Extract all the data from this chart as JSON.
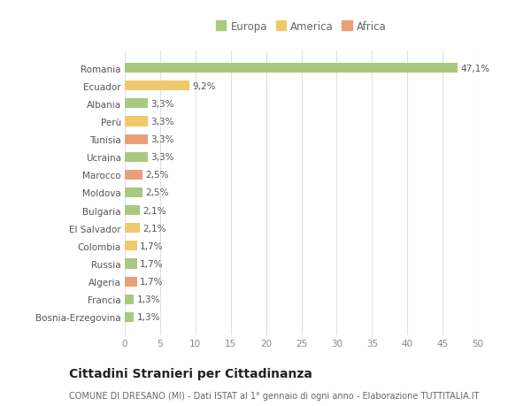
{
  "categories": [
    "Bosnia-Erzegovina",
    "Francia",
    "Algeria",
    "Russia",
    "Colombia",
    "El Salvador",
    "Bulgaria",
    "Moldova",
    "Marocco",
    "Ucraina",
    "Tunisia",
    "Perù",
    "Albania",
    "Ecuador",
    "Romania"
  ],
  "values": [
    1.3,
    1.3,
    1.7,
    1.7,
    1.7,
    2.1,
    2.1,
    2.5,
    2.5,
    3.3,
    3.3,
    3.3,
    3.3,
    9.2,
    47.1
  ],
  "labels": [
    "1,3%",
    "1,3%",
    "1,7%",
    "1,7%",
    "1,7%",
    "2,1%",
    "2,1%",
    "2,5%",
    "2,5%",
    "3,3%",
    "3,3%",
    "3,3%",
    "3,3%",
    "9,2%",
    "47,1%"
  ],
  "continents": [
    "Europa",
    "Europa",
    "Africa",
    "Europa",
    "America",
    "America",
    "Europa",
    "Europa",
    "Africa",
    "Europa",
    "Africa",
    "America",
    "Europa",
    "America",
    "Europa"
  ],
  "colors": {
    "Europa": "#a8c97f",
    "America": "#f0c96a",
    "Africa": "#e8a07a"
  },
  "title": "Cittadini Stranieri per Cittadinanza",
  "subtitle": "COMUNE DI DRESANO (MI) - Dati ISTAT al 1° gennaio di ogni anno - Elaborazione TUTTITALIA.IT",
  "xlim": [
    0,
    50
  ],
  "xticks": [
    0,
    5,
    10,
    15,
    20,
    25,
    30,
    35,
    40,
    45,
    50
  ],
  "background_color": "#ffffff",
  "grid_color": "#e0e0e0",
  "bar_height": 0.55,
  "label_fontsize": 7.5,
  "tick_fontsize": 7.5,
  "ytick_fontsize": 7.5,
  "title_fontsize": 10,
  "subtitle_fontsize": 7,
  "legend_fontsize": 8.5
}
